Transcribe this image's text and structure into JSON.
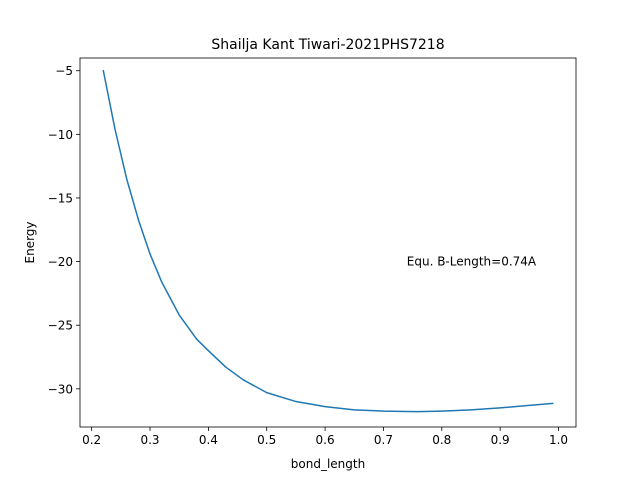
{
  "chart_data": {
    "type": "line",
    "title": "Shailja Kant Tiwari-2021PHS7218",
    "xlabel": "bond_length",
    "ylabel": "Energy",
    "xlim": [
      0.18,
      1.03
    ],
    "ylim": [
      -33,
      -4
    ],
    "xticks": [
      0.2,
      0.3,
      0.4,
      0.5,
      0.6,
      0.7,
      0.8,
      0.9,
      1.0
    ],
    "xtick_labels": [
      "0.2",
      "0.3",
      "0.4",
      "0.5",
      "0.6",
      "0.7",
      "0.8",
      "0.9",
      "1.0"
    ],
    "yticks": [
      -5,
      -10,
      -15,
      -20,
      -25,
      -30
    ],
    "ytick_labels": [
      "−5",
      "−10",
      "−15",
      "−20",
      "−25",
      "−30"
    ],
    "grid": false,
    "color": "#1f77b4",
    "annotation": {
      "text": "Equ. B-Length=0.74A",
      "x": 0.74,
      "y": -20
    },
    "series": [
      {
        "x": [
          0.22,
          0.24,
          0.26,
          0.28,
          0.3,
          0.32,
          0.35,
          0.38,
          0.4,
          0.43,
          0.46,
          0.5,
          0.55,
          0.6,
          0.65,
          0.7,
          0.74,
          0.76,
          0.8,
          0.85,
          0.9,
          0.95,
          0.99
        ],
        "y": [
          -5.0,
          -9.6,
          -13.5,
          -16.7,
          -19.4,
          -21.6,
          -24.2,
          -26.1,
          -27.0,
          -28.3,
          -29.3,
          -30.3,
          -31.0,
          -31.4,
          -31.65,
          -31.75,
          -31.78,
          -31.79,
          -31.75,
          -31.65,
          -31.5,
          -31.3,
          -31.15
        ]
      }
    ]
  }
}
